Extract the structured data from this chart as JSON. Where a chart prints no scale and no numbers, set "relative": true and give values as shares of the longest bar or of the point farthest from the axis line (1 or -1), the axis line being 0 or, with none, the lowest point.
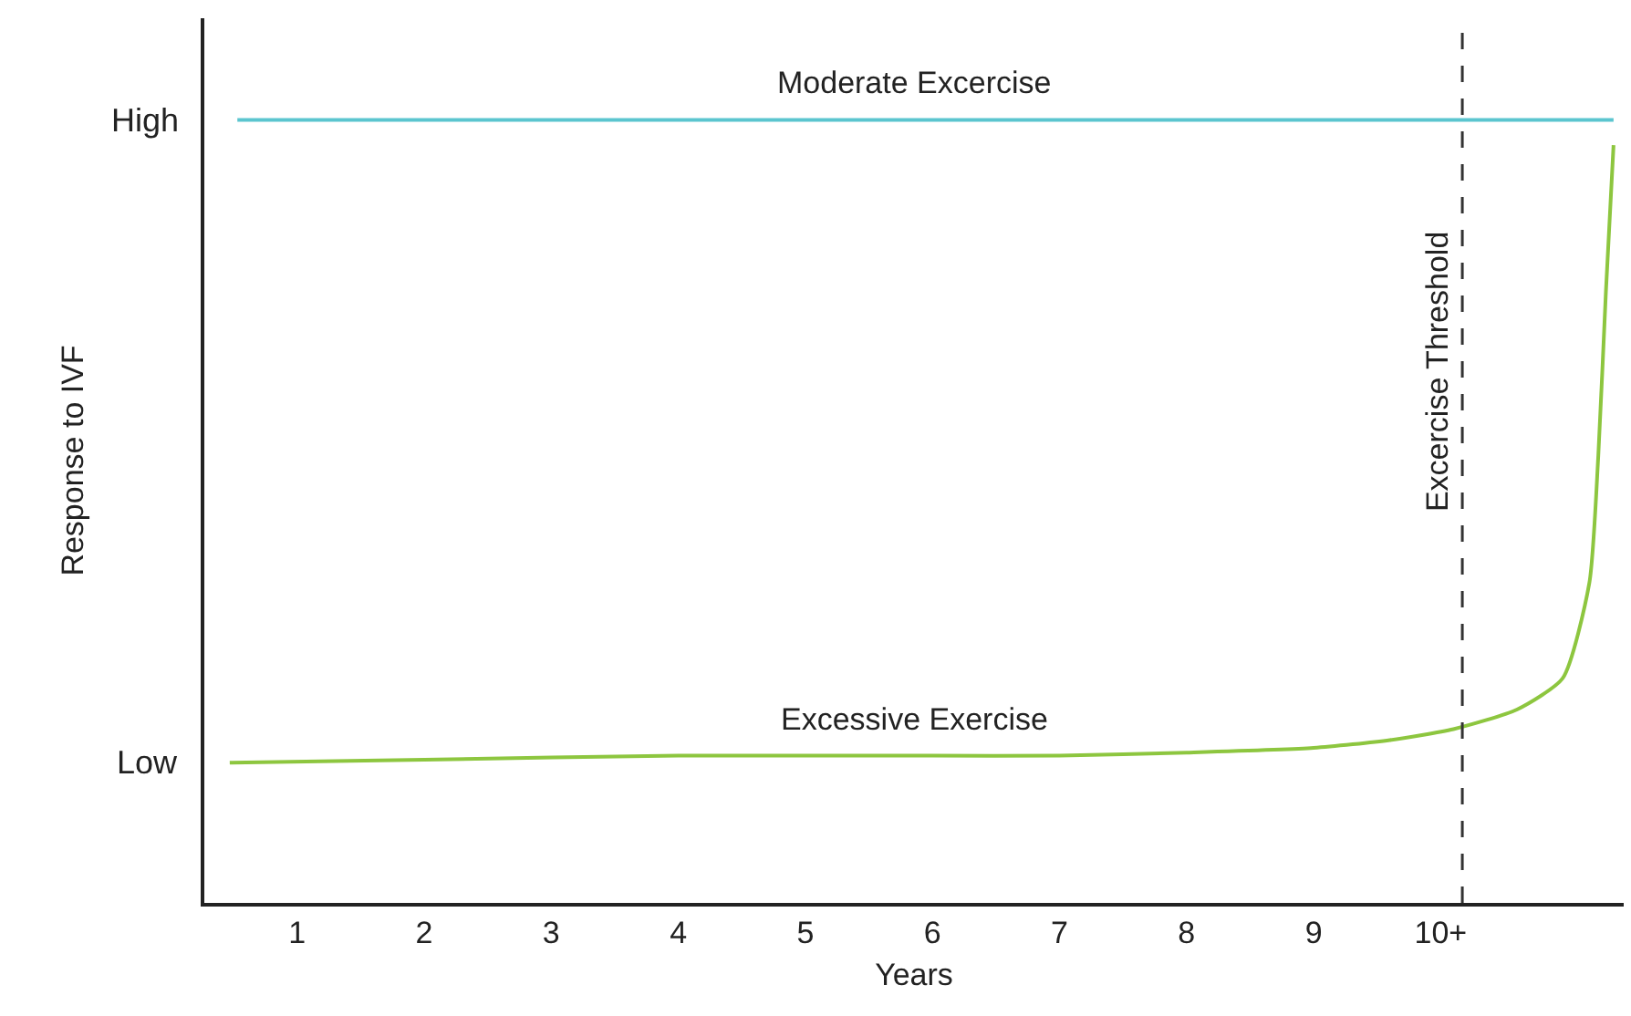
{
  "chart_data": {
    "type": "line",
    "relative": true,
    "xlabel": "Years",
    "ylabel": "Response to IVF",
    "xlim": [
      0.27,
      11.44
    ],
    "xticks": [
      1,
      2,
      3,
      4,
      5,
      6,
      7,
      8,
      9,
      {
        "value": 10,
        "label": "10+"
      }
    ],
    "annotations": [
      "High",
      "Low"
    ],
    "series": [
      {
        "name": "Moderate Excercise",
        "color": "#5bc5cf",
        "x": [
          0.53,
          11.36
        ],
        "values": [
          1,
          1
        ]
      },
      {
        "name": "Excessive Exercise",
        "color": "#8dc63f",
        "x": [
          0.47,
          2,
          4,
          6,
          7,
          8,
          9,
          9.6,
          10.1,
          10.6,
          10.96,
          11.17,
          11.24,
          11.3,
          11.36
        ],
        "values": [
          0.179,
          0.183,
          0.188,
          0.188,
          0.188,
          0.192,
          0.198,
          0.208,
          0.222,
          0.247,
          0.287,
          0.409,
          0.571,
          0.781,
          0.968
        ]
      }
    ],
    "ref_lines": [
      {
        "axis": "x",
        "value": 10.17,
        "label": "Excercise Threshold",
        "color": "#333333",
        "line_style": "dashed"
      }
    ],
    "legend": false,
    "marker": "none",
    "line_style": "solid"
  }
}
